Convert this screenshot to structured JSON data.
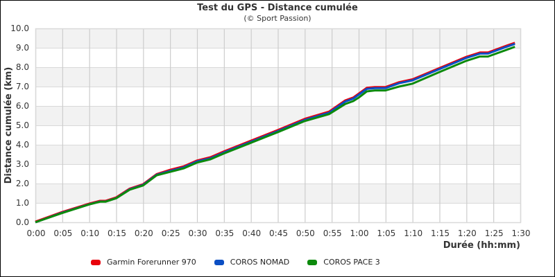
{
  "chart": {
    "title": "Test du GPS - Distance cumulée",
    "subtitle": "(© Sport Passion)",
    "xlabel": "Durée (hh:mm)",
    "ylabel": "Distance cumulée (km)"
  },
  "legend": [
    {
      "label": "Garmin Forerunner 970",
      "color": "#e8000b"
    },
    {
      "label": "COROS NOMAD",
      "color": "#0b4fc4"
    },
    {
      "label": "COROS PACE 3",
      "color": "#0c8a0c"
    }
  ],
  "chart_data": {
    "type": "line",
    "title": "Test du GPS - Distance cumulée",
    "subtitle": "(© Sport Passion)",
    "xlabel": "Durée (hh:mm)",
    "ylabel": "Distance cumulée (km)",
    "xlim_minutes": [
      0,
      90
    ],
    "ylim": [
      0,
      10
    ],
    "x_ticks": [
      "0:00",
      "0:05",
      "0:10",
      "0:15",
      "0:20",
      "0:25",
      "0:30",
      "0:35",
      "0:40",
      "0:45",
      "0:50",
      "0:55",
      "1:00",
      "1:05",
      "1:10",
      "1:15",
      "1:20",
      "1:25",
      "1:30"
    ],
    "y_ticks": [
      "0.0",
      "1.0",
      "2.0",
      "3.0",
      "4.0",
      "5.0",
      "6.0",
      "7.0",
      "8.0",
      "9.0",
      "10.0"
    ],
    "grid": true,
    "legend_position": "bottom",
    "x_minutes": [
      0,
      5,
      10,
      12,
      13,
      15,
      17.5,
      20,
      22.5,
      25,
      27.5,
      30,
      32.5,
      35,
      40,
      45,
      50,
      54.5,
      57.5,
      59,
      60,
      61.5,
      63,
      65,
      67.5,
      70,
      75,
      80,
      82.5,
      84,
      87.5,
      89
    ],
    "series": [
      {
        "name": "Garmin Forerunner 970",
        "color": "#e8000b",
        "values": [
          0,
          0.5,
          0.93,
          1.07,
          1.07,
          1.25,
          1.7,
          1.93,
          2.45,
          2.67,
          2.85,
          3.15,
          3.32,
          3.62,
          4.17,
          4.72,
          5.3,
          5.67,
          6.25,
          6.4,
          6.6,
          6.9,
          6.94,
          6.94,
          7.19,
          7.34,
          7.92,
          8.5,
          8.72,
          8.72,
          9.08,
          9.22
        ]
      },
      {
        "name": "COROS NOMAD",
        "color": "#0b4fc4",
        "values": [
          0,
          0.5,
          0.93,
          1.07,
          1.07,
          1.25,
          1.7,
          1.93,
          2.45,
          2.65,
          2.83,
          3.14,
          3.3,
          3.6,
          4.15,
          4.7,
          5.28,
          5.65,
          6.23,
          6.38,
          6.58,
          6.88,
          6.92,
          6.92,
          7.17,
          7.32,
          7.9,
          8.48,
          8.7,
          8.7,
          9.06,
          9.2
        ]
      },
      {
        "name": "COROS PACE 3",
        "color": "#0c8a0c",
        "values": [
          0,
          0.48,
          0.92,
          1.06,
          1.06,
          1.24,
          1.68,
          1.9,
          2.42,
          2.6,
          2.78,
          3.08,
          3.25,
          3.55,
          4.1,
          4.65,
          5.22,
          5.58,
          6.1,
          6.25,
          6.43,
          6.75,
          6.8,
          6.8,
          7.0,
          7.15,
          7.75,
          8.33,
          8.55,
          8.55,
          8.9,
          9.05
        ]
      }
    ]
  }
}
